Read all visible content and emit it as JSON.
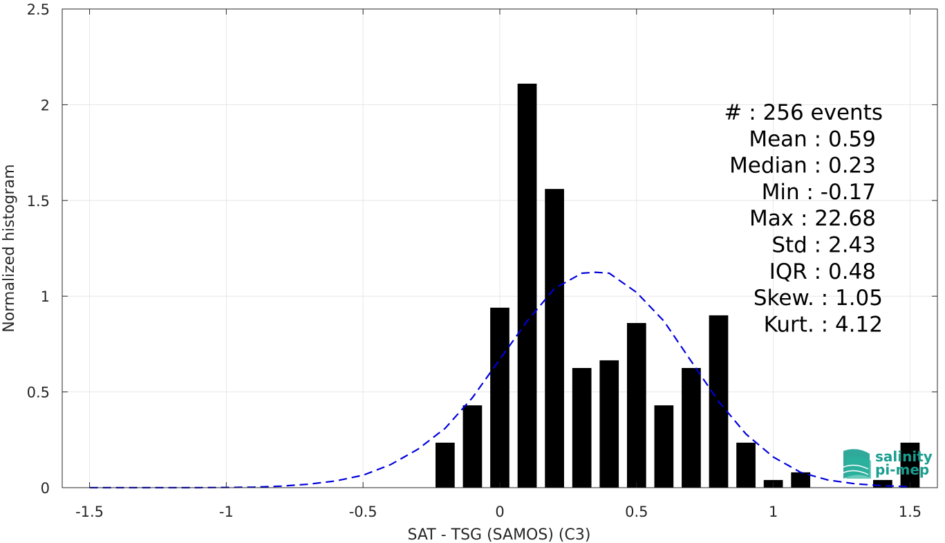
{
  "chart_data": {
    "type": "bar",
    "xlabel": "SAT - TSG (SAMOS) (C3)",
    "ylabel": "Normalized histogram",
    "xlim": [
      -1.6,
      1.6
    ],
    "ylim": [
      0,
      2.5
    ],
    "grid": true,
    "xticks": [
      -1.5,
      -1,
      -0.5,
      0,
      0.5,
      1,
      1.5
    ],
    "xtick_labels": [
      "-1.5",
      "-1",
      "-0.5",
      "0",
      "0.5",
      "1",
      "1.5"
    ],
    "yticks": [
      0,
      0.5,
      1,
      1.5,
      2,
      2.5
    ],
    "ytick_labels": [
      "0",
      "0.5",
      "1",
      "1.5",
      "2",
      "2.5"
    ],
    "bar_width": 0.07,
    "bar_color": "#000000",
    "bars": [
      {
        "x": -0.2,
        "y": 0.235
      },
      {
        "x": -0.1,
        "y": 0.43
      },
      {
        "x": 0.0,
        "y": 0.94
      },
      {
        "x": 0.1,
        "y": 2.11
      },
      {
        "x": 0.2,
        "y": 1.56
      },
      {
        "x": 0.3,
        "y": 0.625
      },
      {
        "x": 0.4,
        "y": 0.665
      },
      {
        "x": 0.5,
        "y": 0.86
      },
      {
        "x": 0.6,
        "y": 0.43
      },
      {
        "x": 0.7,
        "y": 0.625
      },
      {
        "x": 0.8,
        "y": 0.9
      },
      {
        "x": 0.9,
        "y": 0.235
      },
      {
        "x": 1.0,
        "y": 0.04
      },
      {
        "x": 1.1,
        "y": 0.08
      },
      {
        "x": 1.4,
        "y": 0.04
      },
      {
        "x": 1.5,
        "y": 0.235
      }
    ],
    "fit_curve": {
      "style": "dashed",
      "color": "#0000dd",
      "x": [
        -1.5,
        -1.4,
        -1.3,
        -1.2,
        -1.1,
        -1.0,
        -0.9,
        -0.8,
        -0.7,
        -0.6,
        -0.5,
        -0.4,
        -0.3,
        -0.2,
        -0.1,
        0.0,
        0.1,
        0.2,
        0.3,
        0.35,
        0.4,
        0.5,
        0.6,
        0.7,
        0.8,
        0.9,
        1.0,
        1.1,
        1.2,
        1.3,
        1.4,
        1.5
      ],
      "y": [
        0.0,
        0.0,
        0.0,
        0.0,
        0.0,
        0.001,
        0.003,
        0.008,
        0.018,
        0.035,
        0.065,
        0.12,
        0.2,
        0.31,
        0.47,
        0.67,
        0.87,
        1.04,
        1.12,
        1.125,
        1.12,
        1.02,
        0.87,
        0.66,
        0.45,
        0.28,
        0.16,
        0.08,
        0.04,
        0.02,
        0.01,
        0.005
      ]
    },
    "stats": [
      {
        "label": "#  : 256 events"
      },
      {
        "label": "Mean : 0.59"
      },
      {
        "label": "Median : 0.23"
      },
      {
        "label": "Min : -0.17"
      },
      {
        "label": "Max : 22.68"
      },
      {
        "label": "Std : 2.43"
      },
      {
        "label": "IQR : 0.48"
      },
      {
        "label": "Skew. : 1.05"
      },
      {
        "label": "Kurt. : 4.12"
      }
    ]
  },
  "logo": {
    "line1": "salinity",
    "line2": "pi-mep",
    "icon": "salinity-wave-icon",
    "color": "#1a9e8f"
  }
}
